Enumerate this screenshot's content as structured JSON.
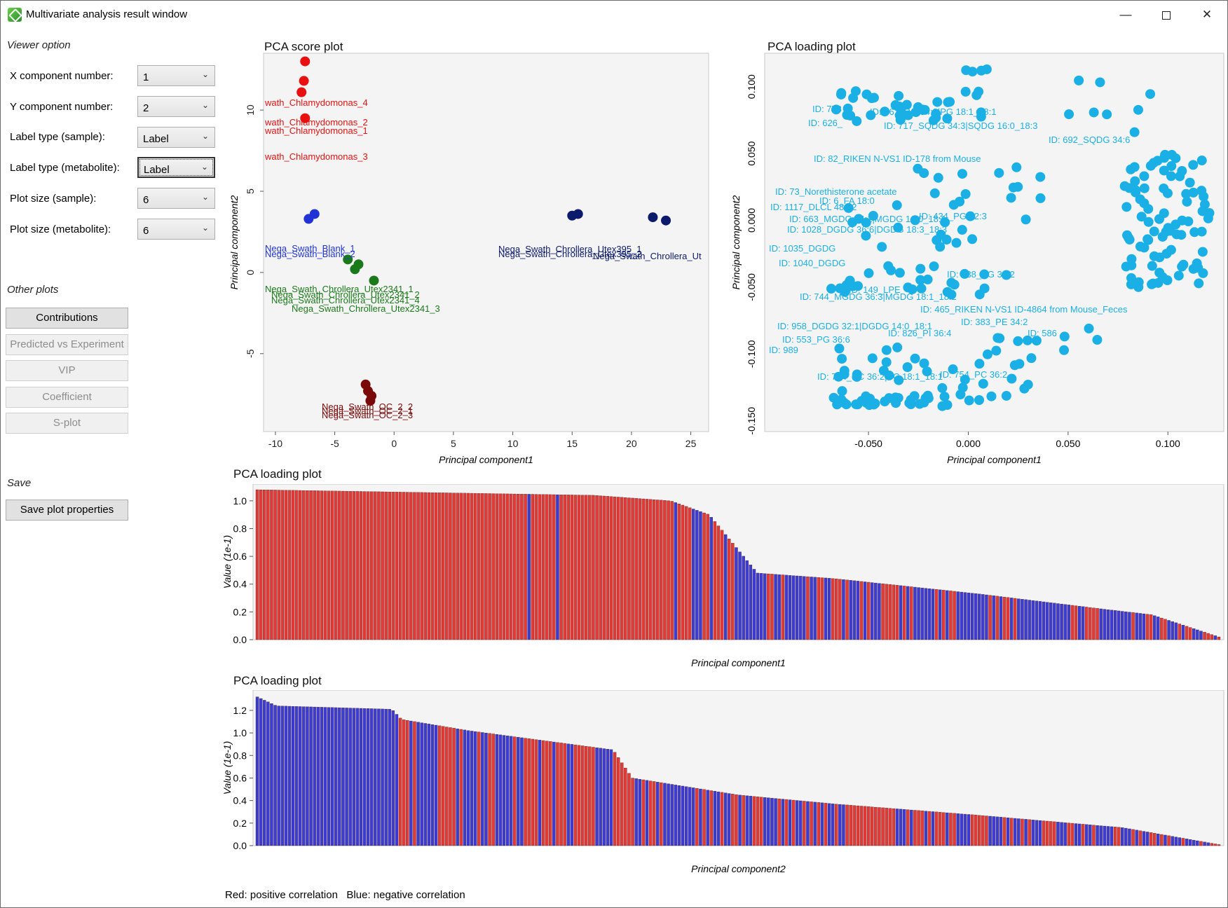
{
  "window": {
    "title": "Multivariate analysis result window",
    "min_icon": "minimize-icon",
    "max_icon": "maximize-icon",
    "close_icon": "close-icon"
  },
  "viewer": {
    "section_label": "Viewer option",
    "options": [
      {
        "label": "X component number:",
        "value": "1"
      },
      {
        "label": "Y component number:",
        "value": "2"
      },
      {
        "label": "Label type (sample):",
        "value": "Label"
      },
      {
        "label": "Label type (metabolite):",
        "value": "Label"
      },
      {
        "label": "Plot size (sample):",
        "value": "6"
      },
      {
        "label": "Plot size (metabolite):",
        "value": "6"
      }
    ]
  },
  "other_plots": {
    "section_label": "Other plots",
    "buttons": [
      "Contributions",
      "Predicted vs Experiment",
      "VIP",
      "Coefficient",
      "S-plot"
    ]
  },
  "save": {
    "section_label": "Save",
    "button": "Save plot properties"
  },
  "colors": {
    "positive": "#e53935",
    "negative": "#3b3bd6",
    "metabolite": "#1ab0e6",
    "blank": "#1f33d6",
    "chlamy": "#e81010",
    "utex2341": "#1a7a1a",
    "utex395": "#0b1a6b",
    "oc": "#7a0a0a"
  },
  "score_plot": {
    "title": "PCA score plot",
    "xlabel": "Principal component1",
    "ylabel": "Principal component2",
    "xticks": [
      "-10",
      "-5",
      "0",
      "5",
      "10",
      "15",
      "20",
      "25"
    ],
    "yticks": [
      "10",
      "5",
      "0",
      "-5"
    ],
    "labels": [
      {
        "text": "wath_Chlamydomonas_4",
        "group": "chlamy"
      },
      {
        "text": "wath_Chlamydomonas_2",
        "group": "chlamy"
      },
      {
        "text": "wath_Chlamydomonas_1",
        "group": "chlamy"
      },
      {
        "text": "wath_Chlamydomonas_3",
        "group": "chlamy"
      },
      {
        "text": "Nega_Swath_Blank_1",
        "group": "blank"
      },
      {
        "text": "Nega_Swath_Blank_2",
        "group": "blank"
      },
      {
        "text": "Nega_Swath_Chrollera_Utex2341_1",
        "group": "utex2341"
      },
      {
        "text": "Nega_Swath_Chrollera_Utex2341_2",
        "group": "utex2341"
      },
      {
        "text": "Nega_Swath_Chrollera_Utex2341_4",
        "group": "utex2341"
      },
      {
        "text": "Nega_Swath_Chrollera_Utex2341_3",
        "group": "utex2341"
      },
      {
        "text": "Nega_Swath_Chrollera_Utex395_1",
        "group": "utex395"
      },
      {
        "text": "Nega_Swath_Chrollera_Utex395_2",
        "group": "utex395"
      },
      {
        "text": "Nega_Swath_Chrollera_Ut",
        "group": "utex395"
      },
      {
        "text": "Nega_Swath_OC_2_2",
        "group": "oc"
      },
      {
        "text": "Nega_Swath_OC_2_1",
        "group": "oc"
      },
      {
        "text": "Nega_Swath_OC_2_3",
        "group": "oc"
      }
    ]
  },
  "loading_scatter": {
    "title": "PCA loading plot",
    "xlabel": "Principal component1",
    "ylabel": "Principal component2",
    "xticks": [
      "-0.050",
      "0.000",
      "0.050",
      "0.100"
    ],
    "yticks": [
      "0.100",
      "0.050",
      "0.000",
      "-0.050",
      "-0.100",
      "-0.150"
    ],
    "labels": [
      "ID: 626_",
      "ID: 778",
      "ID: 361_PG 34:2|PG 18:1_18:1",
      "ID: 717_SQDG 34:3|SQDG 16:0_18:3",
      "ID: 692_SQDG 34:6",
      "ID: 82_RIKEN N-VS1 ID-178 from Mouse",
      "ID: 1117_DLCL 48:12",
      "ID: 663_MGDG 34:1|MGDG 16:0_18:1",
      "ID: 1028_DGDG 36:6|DGDG 18:3_18:3",
      "ID: 434_PG 32:3",
      "ID: 6_FA 18:0",
      "ID: 73_Norethisterone acetate",
      "ID: 1035_DGDG",
      "ID: 1040_DGDG",
      "ID: 149_LPE",
      "ID: 438_PG 32:2",
      "ID: 744_MGDG 36:3|MGDG 18:1_18:2",
      "ID: 465_RIKEN N-VS1 ID-4864 from Mouse_Feces",
      "ID: 958_DGDG 32:1|DGDG 14:0_18:1",
      "ID: 826_PI 36:4",
      "ID: 754_PC 36:2|PC 18:1_18:1",
      "ID: 383_PE 34:2",
      "ID: 586",
      "ID: 553_PG 36:6",
      "ID: 989",
      "ID: 754_PC 36:2"
    ]
  },
  "bar1": {
    "title": "PCA loading plot",
    "xlabel": "Principal component1",
    "ylabel": "Value (1e-1)",
    "yticks": [
      "1.0",
      "0.8",
      "0.6",
      "0.4",
      "0.2",
      "0.0"
    ]
  },
  "bar2": {
    "title": "PCA loading plot",
    "xlabel": "Principal component2",
    "ylabel": "Value (1e-1)",
    "yticks": [
      "1.2",
      "1.0",
      "0.8",
      "0.6",
      "0.4",
      "0.2",
      "0.0"
    ]
  },
  "legend_note": "Red: positive correlation   Blue: negative correlation",
  "chart_data": [
    {
      "type": "scatter",
      "title": "PCA score plot",
      "xlabel": "Principal component1",
      "ylabel": "Principal component2",
      "xlim": [
        -11,
        26.5
      ],
      "ylim": [
        -9.8,
        13.5
      ],
      "series": [
        {
          "name": "Chlamydomonas",
          "x": [
            -7.5,
            -7.6,
            -7.8,
            -7.5
          ],
          "y": [
            13,
            11.8,
            11.1,
            9.5
          ]
        },
        {
          "name": "Blank",
          "x": [
            -7.2,
            -6.7
          ],
          "y": [
            3.3,
            3.6
          ]
        },
        {
          "name": "Chrollera_Utex2341",
          "x": [
            -3.9,
            -3.3,
            -3.0,
            -1.7
          ],
          "y": [
            0.8,
            0.2,
            0.5,
            -0.5
          ]
        },
        {
          "name": "Chrollera_Utex395",
          "x": [
            15.0,
            15.5,
            21.8,
            22.9
          ],
          "y": [
            3.5,
            3.6,
            3.4,
            3.2
          ]
        },
        {
          "name": "OC",
          "x": [
            -2.4,
            -2.2,
            -1.9,
            -2.0
          ],
          "y": [
            -6.9,
            -7.3,
            -7.6,
            -7.9
          ]
        }
      ]
    },
    {
      "type": "bar",
      "title": "PCA loading plot",
      "xlabel": "Principal component1",
      "ylabel": "Value (1e-1)",
      "ylim": [
        0,
        1.08
      ],
      "description": "270 sorted loading bars; red = positive correlation, blue = negative",
      "profile": [
        [
          0,
          1.08
        ],
        [
          0.35,
          1.04
        ],
        [
          0.43,
          1.0
        ],
        [
          0.47,
          0.9
        ],
        [
          0.52,
          0.48
        ],
        [
          0.6,
          0.44
        ],
        [
          0.75,
          0.33
        ],
        [
          0.88,
          0.22
        ],
        [
          0.93,
          0.18
        ],
        [
          1.0,
          0.02
        ]
      ]
    },
    {
      "type": "bar",
      "title": "PCA loading plot",
      "xlabel": "Principal component2",
      "ylabel": "Value (1e-1)",
      "ylim": [
        0,
        1.33
      ],
      "description": "270 sorted loading bars; red = positive correlation, blue = negative",
      "profile": [
        [
          0,
          1.32
        ],
        [
          0.02,
          1.24
        ],
        [
          0.14,
          1.21
        ],
        [
          0.15,
          1.12
        ],
        [
          0.22,
          1.02
        ],
        [
          0.37,
          0.85
        ],
        [
          0.39,
          0.6
        ],
        [
          0.5,
          0.45
        ],
        [
          0.6,
          0.37
        ],
        [
          0.75,
          0.27
        ],
        [
          0.9,
          0.16
        ],
        [
          1.0,
          0.01
        ]
      ]
    }
  ]
}
